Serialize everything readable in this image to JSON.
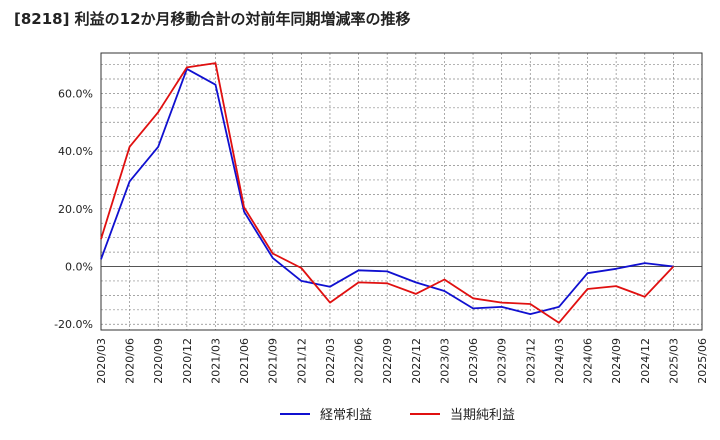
{
  "chart_data": {
    "type": "line",
    "title": "[8218]  利益の12か月移動合計の対前年同期増減率の推移",
    "xlabel": "",
    "ylabel": "",
    "ylim": [
      -22,
      74
    ],
    "y_ticks": [
      -20,
      0,
      20,
      40,
      60
    ],
    "y_tick_labels": [
      "-20.0%",
      "0.0%",
      "20.0%",
      "40.0%",
      "60.0%"
    ],
    "categories": [
      "2020/03",
      "2020/06",
      "2020/09",
      "2020/12",
      "2021/03",
      "2021/06",
      "2021/09",
      "2021/12",
      "2022/03",
      "2022/06",
      "2022/09",
      "2022/12",
      "2023/03",
      "2023/06",
      "2023/09",
      "2023/12",
      "2024/03",
      "2024/06",
      "2024/09",
      "2024/12",
      "2025/03",
      "2025/06"
    ],
    "grid": true,
    "legend_position": "bottom",
    "series": [
      {
        "name": "経常利益",
        "color": "#1010d0",
        "values": [
          2.5,
          29.5,
          41.5,
          68.5,
          63.0,
          19.0,
          3.0,
          -5.0,
          -7.0,
          -1.3,
          -1.7,
          -5.5,
          -8.5,
          -14.5,
          -14.0,
          -16.5,
          -14.0,
          -2.3,
          -0.8,
          1.2,
          0.0,
          null
        ]
      },
      {
        "name": "当期純利益",
        "color": "#e01010",
        "values": [
          9.5,
          41.5,
          53.5,
          69.0,
          70.5,
          20.5,
          4.5,
          -0.5,
          -12.5,
          -5.5,
          -5.8,
          -9.5,
          -4.5,
          -11.0,
          -12.5,
          -13.0,
          -19.5,
          -7.8,
          -6.8,
          -10.5,
          0.0,
          null
        ]
      }
    ]
  }
}
